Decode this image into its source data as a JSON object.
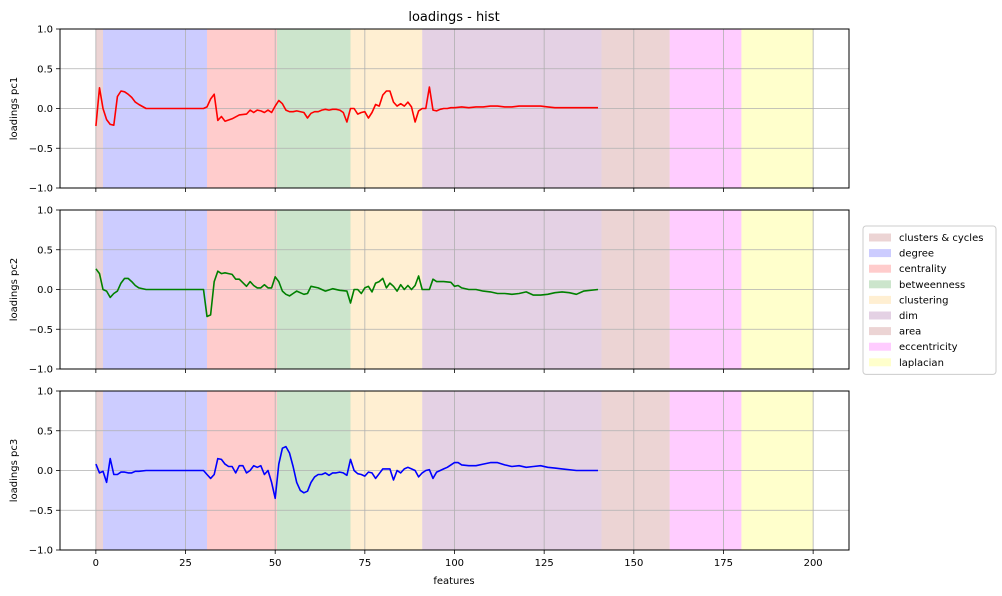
{
  "figure_title": "loadings - hist",
  "legend": {
    "placement": "right, outside plots",
    "items": [
      {
        "label": "clusters & cycles",
        "color": "#d9a9a9"
      },
      {
        "label": "degree",
        "color": "#9999ff"
      },
      {
        "label": "centrality",
        "color": "#ff9999"
      },
      {
        "label": "betweenness",
        "color": "#99cc99"
      },
      {
        "label": "clustering",
        "color": "#ffe0a6"
      },
      {
        "label": "dim",
        "color": "#c9a3c9"
      },
      {
        "label": "area",
        "color": "#d9a9a9"
      },
      {
        "label": "eccentricity",
        "color": "#ff99ff"
      },
      {
        "label": "laplacian",
        "color": "#ffff99"
      }
    ]
  },
  "chart_data": {
    "type": "line",
    "title": "loadings - hist",
    "xlabel": "features",
    "xlim": [
      -10,
      210
    ],
    "ylim": [
      -1.0,
      1.0
    ],
    "xticks": [
      0,
      25,
      50,
      75,
      100,
      125,
      150,
      175,
      200
    ],
    "xtick_labels": [
      "0",
      "25",
      "50",
      "75",
      "100",
      "125",
      "150",
      "175",
      "200"
    ],
    "yticks": [
      -1.0,
      -0.5,
      0.0,
      0.5,
      1.0
    ],
    "ytick_labels": [
      "−1.0",
      "−0.5",
      "0.0",
      "0.5",
      "1.0"
    ],
    "grid": true,
    "shared_x": true,
    "regions": [
      {
        "name": "clusters & cycles",
        "start": 0,
        "end": 2,
        "color": "#d9a9a9"
      },
      {
        "name": "degree",
        "start": 2,
        "end": 31,
        "color": "#9999ff"
      },
      {
        "name": "centrality",
        "start": 31,
        "end": 50.5,
        "color": "#ff9999"
      },
      {
        "name": "betweenness",
        "start": 50.5,
        "end": 71,
        "color": "#99cc99"
      },
      {
        "name": "clustering",
        "start": 71,
        "end": 91,
        "color": "#ffe0a6"
      },
      {
        "name": "dim",
        "start": 91,
        "end": 141,
        "color": "#c9a3c9"
      },
      {
        "name": "area",
        "start": 141,
        "end": 160,
        "color": "#d9a9a9"
      },
      {
        "name": "eccentricity",
        "start": 160,
        "end": 180,
        "color": "#ff99ff"
      },
      {
        "name": "laplacian",
        "start": 180,
        "end": 200,
        "color": "#ffff99"
      }
    ],
    "subplots": [
      {
        "ylabel": "loadings pc1",
        "color": "#ff0000",
        "x": [
          0,
          1,
          2,
          3,
          4,
          5,
          6,
          7,
          8,
          9,
          10,
          11,
          12,
          14,
          20,
          25,
          30,
          31,
          32,
          33,
          34,
          35,
          36,
          38,
          40,
          42,
          43,
          44,
          45,
          46,
          47,
          48,
          49,
          50,
          51,
          52,
          53,
          54,
          55,
          56,
          58,
          59,
          60,
          61,
          62,
          63,
          64,
          65,
          66,
          67,
          68,
          69,
          70,
          71,
          72,
          73,
          74,
          75,
          76,
          77,
          78,
          79,
          80,
          81,
          82,
          83,
          84,
          85,
          86,
          87,
          88,
          89,
          90,
          91,
          92,
          93,
          94,
          95,
          96,
          97,
          98,
          99,
          100,
          102,
          104,
          106,
          108,
          110,
          112,
          114,
          116,
          118,
          120,
          122,
          124,
          126,
          128,
          130,
          135,
          140
        ],
        "y": [
          -0.22,
          0.26,
          0.0,
          -0.14,
          -0.2,
          -0.21,
          0.15,
          0.22,
          0.21,
          0.18,
          0.14,
          0.08,
          0.05,
          0.0,
          0.0,
          0.0,
          0.0,
          0.02,
          0.12,
          0.18,
          -0.15,
          -0.1,
          -0.16,
          -0.13,
          -0.08,
          -0.07,
          -0.02,
          -0.05,
          -0.02,
          -0.03,
          -0.05,
          -0.02,
          -0.05,
          0.03,
          0.1,
          0.06,
          -0.02,
          -0.04,
          -0.04,
          -0.03,
          -0.05,
          -0.12,
          -0.06,
          -0.04,
          -0.04,
          -0.02,
          -0.01,
          -0.02,
          -0.01,
          -0.01,
          -0.02,
          -0.05,
          -0.17,
          0.0,
          0.0,
          -0.07,
          -0.05,
          -0.04,
          -0.12,
          -0.05,
          0.05,
          0.03,
          0.17,
          0.22,
          0.22,
          0.08,
          0.03,
          0.06,
          0.03,
          0.08,
          0.02,
          -0.17,
          -0.03,
          0.0,
          0.0,
          0.27,
          -0.02,
          -0.03,
          -0.01,
          0.0,
          0.0,
          0.01,
          0.01,
          0.02,
          0.01,
          0.02,
          0.02,
          0.03,
          0.03,
          0.02,
          0.02,
          0.03,
          0.03,
          0.03,
          0.03,
          0.02,
          0.01,
          0.01,
          0.01,
          0.01
        ]
      },
      {
        "ylabel": "loadings pc2",
        "color": "#008000",
        "x": [
          0,
          1,
          2,
          3,
          4,
          5,
          6,
          7,
          8,
          9,
          10,
          11,
          12,
          14,
          20,
          25,
          30,
          31,
          32,
          33,
          34,
          35,
          36,
          37,
          38,
          39,
          40,
          42,
          43,
          44,
          45,
          46,
          47,
          48,
          49,
          50,
          51,
          52,
          53,
          54,
          55,
          56,
          58,
          59,
          60,
          62,
          64,
          66,
          68,
          70,
          71,
          72,
          73,
          74,
          75,
          76,
          77,
          78,
          79,
          80,
          81,
          82,
          83,
          84,
          85,
          86,
          87,
          88,
          89,
          90,
          91,
          93,
          94,
          95,
          97,
          99,
          100,
          101,
          102,
          104,
          106,
          108,
          110,
          112,
          114,
          116,
          118,
          120,
          122,
          124,
          126,
          128,
          130,
          132,
          134,
          136,
          140
        ],
        "y": [
          0.26,
          0.2,
          0.0,
          -0.02,
          -0.1,
          -0.05,
          -0.02,
          0.08,
          0.14,
          0.14,
          0.1,
          0.05,
          0.02,
          0.0,
          0.0,
          0.0,
          0.0,
          -0.34,
          -0.32,
          0.1,
          0.23,
          0.2,
          0.21,
          0.2,
          0.19,
          0.13,
          0.13,
          0.04,
          0.1,
          0.05,
          0.02,
          0.02,
          0.06,
          0.02,
          0.02,
          0.16,
          0.1,
          -0.02,
          -0.06,
          -0.08,
          -0.05,
          -0.02,
          -0.06,
          -0.05,
          0.04,
          0.02,
          -0.02,
          0.01,
          -0.01,
          -0.02,
          -0.17,
          0.0,
          0.0,
          -0.05,
          0.02,
          0.04,
          -0.03,
          0.08,
          0.1,
          0.14,
          0.02,
          0.08,
          0.04,
          -0.02,
          0.06,
          0.0,
          0.05,
          0.0,
          0.05,
          0.17,
          0.0,
          0.0,
          0.13,
          0.1,
          0.1,
          0.09,
          0.04,
          0.05,
          0.02,
          0.0,
          0.0,
          -0.02,
          -0.03,
          -0.05,
          -0.05,
          -0.06,
          -0.05,
          -0.03,
          -0.07,
          -0.07,
          -0.06,
          -0.04,
          -0.03,
          -0.04,
          -0.06,
          -0.02,
          0.0
        ]
      },
      {
        "ylabel": "loadings pc3",
        "xlabel": "features",
        "color": "#0000ff",
        "x": [
          0,
          1,
          2,
          3,
          4,
          5,
          6,
          7,
          8,
          9,
          10,
          11,
          12,
          14,
          20,
          25,
          30,
          31,
          32,
          33,
          34,
          35,
          36,
          37,
          38,
          39,
          40,
          41,
          42,
          43,
          44,
          45,
          46,
          47,
          48,
          49,
          50,
          51,
          52,
          53,
          54,
          55,
          56,
          57,
          58,
          59,
          60,
          61,
          62,
          63,
          64,
          65,
          66,
          67,
          68,
          69,
          70,
          71,
          72,
          73,
          74,
          75,
          76,
          77,
          78,
          79,
          80,
          81,
          82,
          83,
          84,
          85,
          86,
          87,
          88,
          89,
          90,
          91,
          92,
          93,
          94,
          95,
          96,
          97,
          98,
          99,
          100,
          101,
          102,
          104,
          106,
          108,
          110,
          112,
          114,
          116,
          118,
          120,
          122,
          124,
          126,
          128,
          130,
          134,
          140
        ],
        "y": [
          0.08,
          -0.03,
          -0.01,
          -0.15,
          0.15,
          -0.05,
          -0.05,
          -0.02,
          -0.02,
          -0.03,
          -0.03,
          -0.01,
          -0.01,
          0.0,
          0.0,
          0.0,
          0.0,
          -0.05,
          -0.1,
          -0.05,
          0.15,
          0.14,
          0.08,
          0.05,
          0.05,
          -0.03,
          0.06,
          0.06,
          -0.03,
          0.0,
          0.06,
          0.04,
          0.06,
          -0.05,
          0.0,
          -0.15,
          -0.35,
          0.08,
          0.28,
          0.3,
          0.22,
          0.05,
          -0.15,
          -0.25,
          -0.28,
          -0.26,
          -0.15,
          -0.08,
          -0.05,
          -0.05,
          -0.03,
          -0.06,
          -0.03,
          -0.03,
          -0.02,
          -0.03,
          -0.06,
          0.14,
          0.0,
          -0.04,
          -0.05,
          -0.07,
          -0.02,
          -0.03,
          -0.1,
          -0.04,
          0.02,
          0.02,
          0.02,
          -0.12,
          0.0,
          -0.03,
          0.02,
          0.04,
          0.02,
          0.0,
          -0.08,
          -0.03,
          0.0,
          0.01,
          -0.1,
          -0.02,
          0.0,
          0.02,
          0.04,
          0.07,
          0.1,
          0.1,
          0.07,
          0.06,
          0.06,
          0.08,
          0.1,
          0.1,
          0.07,
          0.05,
          0.06,
          0.04,
          0.05,
          0.06,
          0.04,
          0.03,
          0.02,
          0.0,
          0.0
        ]
      }
    ]
  }
}
